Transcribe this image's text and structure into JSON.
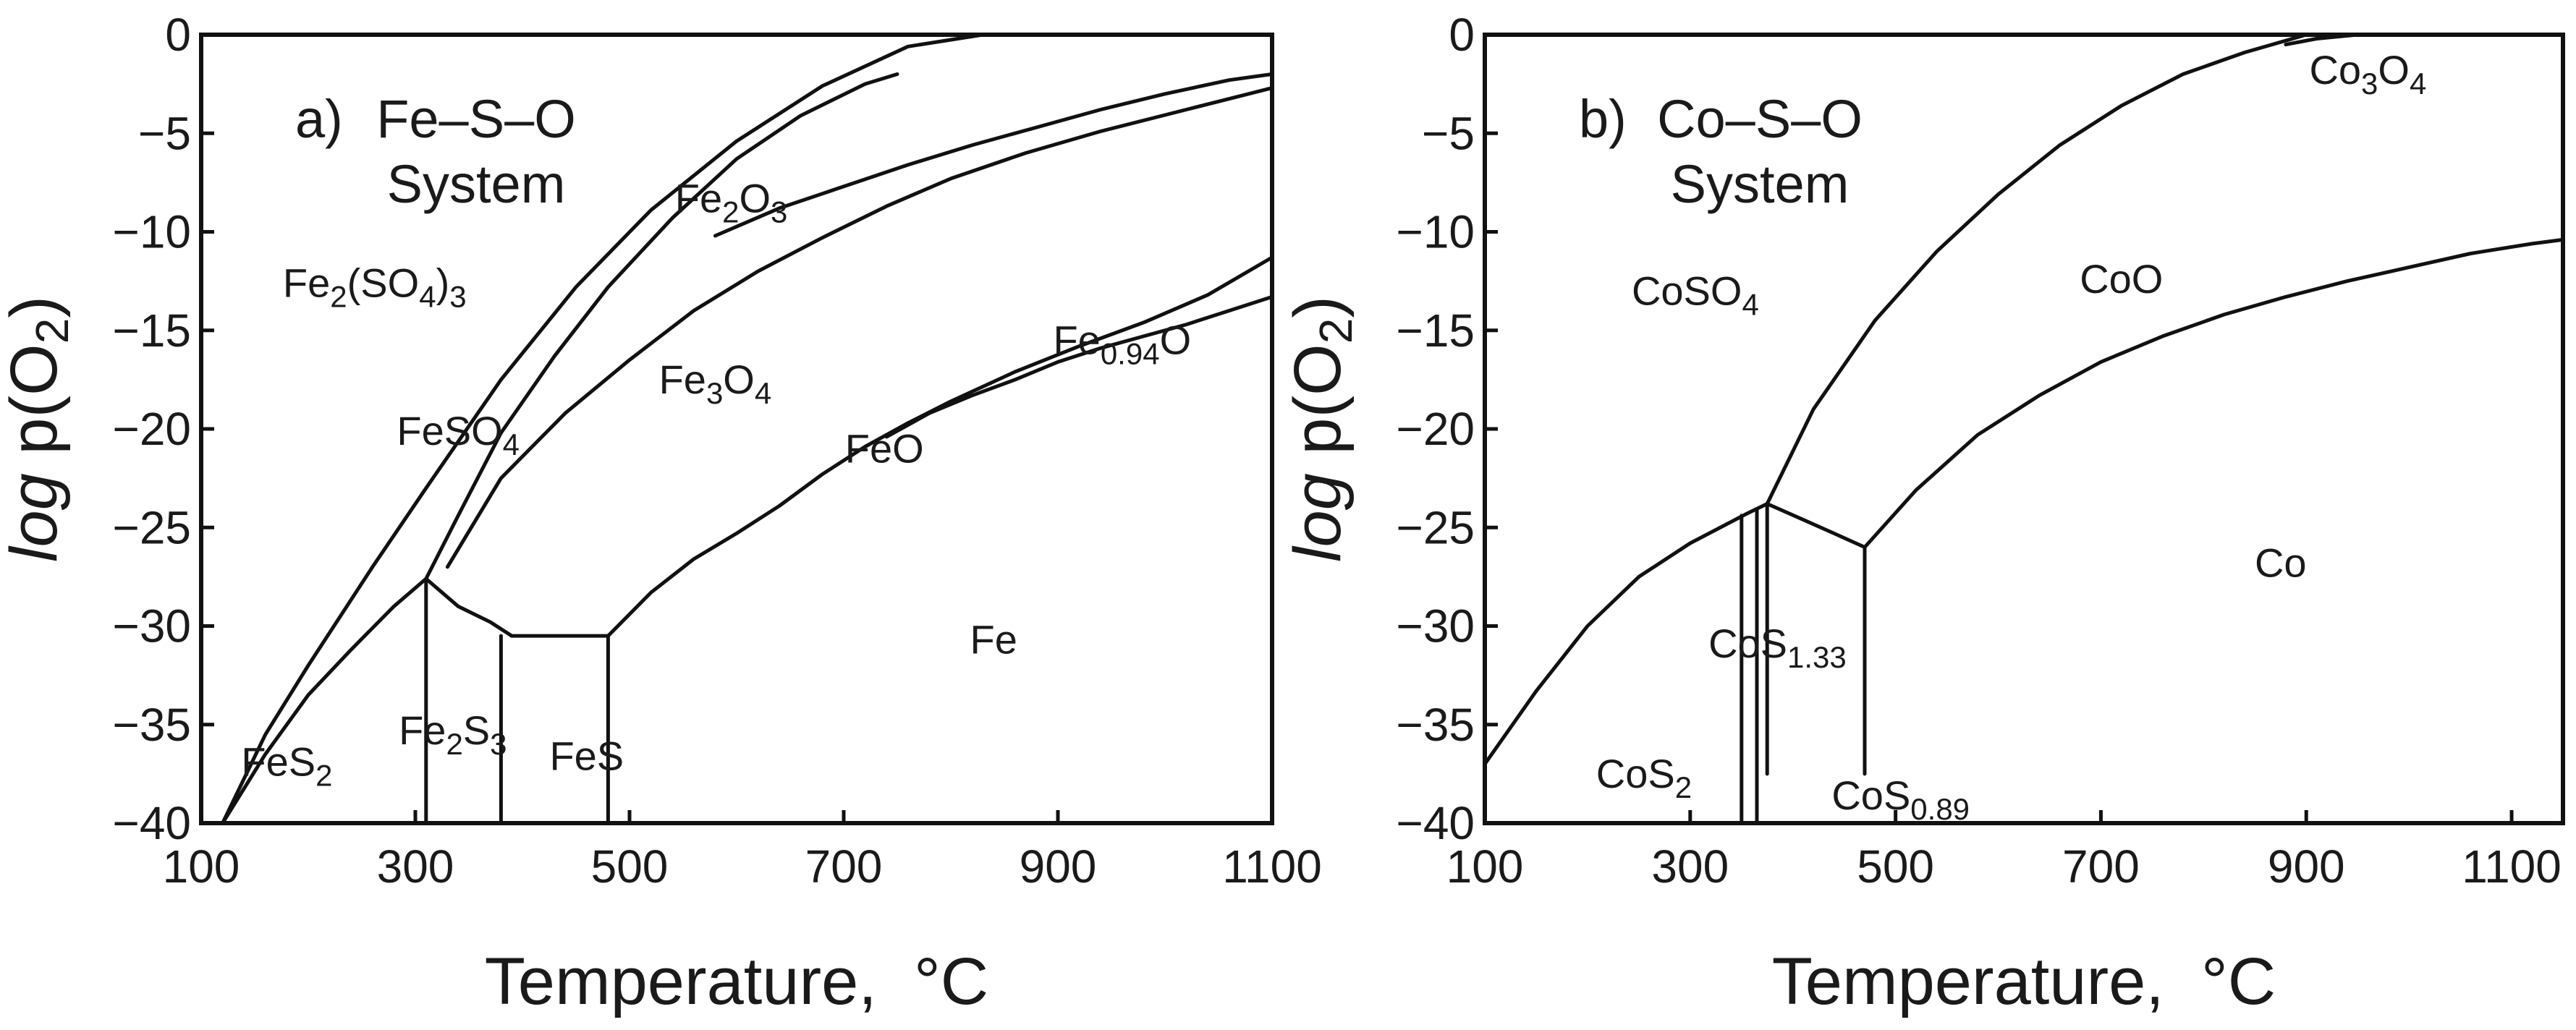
{
  "chart_data": [
    {
      "type": "line",
      "panel_label": "a)",
      "title": "Fe–S–O",
      "subtitle": "System",
      "xlabel": "Temperature,  °C",
      "ylabel_italic": "log",
      "ylabel_rest": " p(O",
      "ylabel_sub": "2",
      "ylabel_close": ")",
      "xlim": [
        100,
        1100
      ],
      "ylim": [
        -40,
        0
      ],
      "xticks": [
        100,
        300,
        500,
        700,
        900,
        1100
      ],
      "yticks": [
        0,
        -5,
        -10,
        -15,
        -20,
        -25,
        -30,
        -35,
        -40
      ],
      "ytick_labels": [
        "0",
        "−5",
        "−10",
        "−15",
        "−20",
        "−25",
        "−30",
        "−35",
        "−40"
      ],
      "series": [
        {
          "name": "FeS2 / Fe2(SO4)3",
          "x": [
            120,
            160,
            200,
            240,
            280,
            310
          ],
          "y": [
            -40,
            -36.5,
            -33.5,
            -31.2,
            -29.0,
            -27.6
          ]
        },
        {
          "name": "Fe2(SO4)3 / sulfides",
          "x": [
            120,
            160,
            200,
            260,
            310,
            380,
            450,
            520,
            600,
            680,
            760,
            830
          ],
          "y": [
            -40,
            -35.5,
            -32.0,
            -27.0,
            -23.0,
            -17.5,
            -12.8,
            -8.9,
            -5.4,
            -2.6,
            -0.6,
            0
          ]
        },
        {
          "name": "FeSO4 / Fe2(SO4)3",
          "x": [
            310,
            340,
            380,
            430,
            480,
            540,
            600,
            660,
            720,
            750
          ],
          "y": [
            -27.6,
            -24.4,
            -20.2,
            -16.3,
            -12.8,
            -9.3,
            -6.3,
            -4.1,
            -2.5,
            -2.0
          ]
        },
        {
          "name": "Fe2O3 / FeSO4",
          "x": [
            330,
            380,
            440,
            500,
            560,
            620,
            680,
            740,
            800,
            870,
            940,
            1020,
            1100
          ],
          "y": [
            -27.0,
            -22.5,
            -19.2,
            -16.5,
            -14.0,
            -12.0,
            -10.3,
            -8.7,
            -7.3,
            -6.0,
            -4.9,
            -3.8,
            -2.7
          ]
        },
        {
          "name": "Fe3O4 / Fe2O3",
          "x": [
            580,
            640,
            700,
            760,
            820,
            880,
            940,
            1000,
            1060,
            1100
          ],
          "y": [
            -10.2,
            -8.8,
            -7.7,
            -6.6,
            -5.6,
            -4.7,
            -3.8,
            -3.0,
            -2.3,
            -2.0
          ]
        },
        {
          "name": "FeS / sulfate boundary",
          "x": [
            310,
            340,
            370,
            390
          ],
          "y": [
            -27.6,
            -29.0,
            -29.8,
            -30.5
          ]
        },
        {
          "name": "FeS-Fe3O4 plateau",
          "x": [
            390,
            480
          ],
          "y": [
            -30.5,
            -30.5
          ]
        },
        {
          "name": "Fe / Fe3O4 + FeO",
          "x": [
            480,
            520,
            560,
            600,
            640,
            680,
            720,
            760,
            800,
            860,
            920,
            980,
            1040,
            1100
          ],
          "y": [
            -30.5,
            -28.3,
            -26.6,
            -25.3,
            -23.9,
            -22.3,
            -20.9,
            -19.7,
            -18.6,
            -17.1,
            -15.8,
            -14.6,
            -13.2,
            -11.3
          ]
        },
        {
          "name": "FeO / Fe3O4",
          "x": [
            740,
            780,
            820,
            860,
            900,
            940,
            980,
            1020,
            1060,
            1100
          ],
          "y": [
            -20.4,
            -19.2,
            -18.3,
            -17.5,
            -16.6,
            -15.9,
            -15.3,
            -14.7,
            -14.0,
            -13.3
          ]
        },
        {
          "name": "Fe2S3 vertical",
          "x": [
            310,
            310
          ],
          "y": [
            -27.6,
            -40
          ]
        },
        {
          "name": "FeS vertical",
          "x": [
            380,
            380
          ],
          "y": [
            -30.5,
            -40
          ]
        },
        {
          "name": "FeS/Fe vertical",
          "x": [
            480,
            480
          ],
          "y": [
            -30.5,
            -40
          ]
        }
      ],
      "region_labels": [
        {
          "text": "Fe2(SO4)3",
          "parts": [
            [
              "Fe",
              ""
            ],
            [
              "2",
              "sub"
            ],
            [
              "(SO",
              ""
            ],
            [
              "4",
              "sub"
            ],
            [
              ")",
              ""
            ],
            [
              "3",
              "sub"
            ]
          ],
          "x": 262,
          "y": -13.3
        },
        {
          "text": "Fe2O3",
          "parts": [
            [
              "Fe",
              ""
            ],
            [
              "2",
              "sub"
            ],
            [
              "O",
              ""
            ],
            [
              "3",
              "sub"
            ]
          ],
          "x": 595,
          "y": -9.0
        },
        {
          "text": "Fe3O4",
          "parts": [
            [
              "Fe",
              ""
            ],
            [
              "3",
              "sub"
            ],
            [
              "O",
              ""
            ],
            [
              "4",
              "sub"
            ]
          ],
          "x": 580,
          "y": -18.2
        },
        {
          "text": "FeSO4",
          "parts": [
            [
              "FeSO",
              ""
            ],
            [
              "4",
              "sub"
            ]
          ],
          "x": 340,
          "y": -20.8
        },
        {
          "text": "FeO",
          "parts": [
            [
              "FeO",
              ""
            ]
          ],
          "x": 738,
          "y": -21.7
        },
        {
          "text": "Fe0.94O",
          "parts": [
            [
              "Fe",
              ""
            ],
            [
              "0.94",
              "sub"
            ],
            [
              "O",
              ""
            ]
          ],
          "x": 960,
          "y": -16.2
        },
        {
          "text": "Fe",
          "parts": [
            [
              "Fe",
              ""
            ]
          ],
          "x": 840,
          "y": -31.4
        },
        {
          "text": "FeS2",
          "parts": [
            [
              "FeS",
              ""
            ],
            [
              "2",
              "sub"
            ]
          ],
          "x": 180,
          "y": -37.6
        },
        {
          "text": "Fe2S3",
          "parts": [
            [
              "Fe",
              ""
            ],
            [
              "2",
              "sub"
            ],
            [
              "S",
              ""
            ],
            [
              "3",
              "sub"
            ]
          ],
          "x": 335,
          "y": -36.0
        },
        {
          "text": "FeS",
          "parts": [
            [
              "FeS",
              ""
            ]
          ],
          "x": 460,
          "y": -37.3
        }
      ]
    },
    {
      "type": "line",
      "panel_label": "b)",
      "title": "Co–S–O",
      "subtitle": "System",
      "xlabel": "Temperature,  °C",
      "ylabel_italic": "log",
      "ylabel_rest": " p(O",
      "ylabel_sub": "2",
      "ylabel_close": ")",
      "xlim": [
        100,
        1150
      ],
      "ylim": [
        -40,
        0
      ],
      "xticks": [
        100,
        300,
        500,
        700,
        900,
        1100
      ],
      "yticks": [
        0,
        -5,
        -10,
        -15,
        -20,
        -25,
        -30,
        -35,
        -40
      ],
      "ytick_labels": [
        "0",
        "−5",
        "−10",
        "−15",
        "−20",
        "−25",
        "−30",
        "−35",
        "−40"
      ],
      "series": [
        {
          "name": "CoS2 / CoSO4",
          "x": [
            100,
            150,
            200,
            250,
            300,
            355
          ],
          "y": [
            -37.0,
            -33.3,
            -30.0,
            -27.5,
            -25.8,
            -24.3
          ]
        },
        {
          "name": "CoSO4 / CoS1.33",
          "x": [
            355,
            375
          ],
          "y": [
            -24.3,
            -23.8
          ]
        },
        {
          "name": "Co3O4 upper",
          "x": [
            375,
            420,
            480,
            540,
            600,
            660,
            720,
            780,
            840,
            900,
            950
          ],
          "y": [
            -23.8,
            -19.0,
            -14.5,
            -11.0,
            -8.1,
            -5.6,
            -3.6,
            -2.0,
            -0.9,
            0,
            0
          ]
        },
        {
          "name": "Co3O4 lower",
          "x": [
            880,
            910,
            950
          ],
          "y": [
            -0.5,
            -0.2,
            0
          ]
        },
        {
          "name": "CoS0.89 / oxide boundary",
          "x": [
            375,
            410,
            440,
            470
          ],
          "y": [
            -23.8,
            -24.6,
            -25.3,
            -26.0
          ]
        },
        {
          "name": "Co / CoO",
          "x": [
            470,
            520,
            580,
            640,
            700,
            760,
            820,
            880,
            940,
            1000,
            1060,
            1120,
            1150
          ],
          "y": [
            -26.0,
            -23.1,
            -20.3,
            -18.3,
            -16.6,
            -15.3,
            -14.2,
            -13.3,
            -12.5,
            -11.8,
            -11.1,
            -10.6,
            -10.4
          ]
        },
        {
          "name": "CoS2 vertical",
          "x": [
            350,
            350
          ],
          "y": [
            -24.4,
            -40
          ]
        },
        {
          "name": "CoS1.33 vertical left",
          "x": [
            365,
            365
          ],
          "y": [
            -24.1,
            -40
          ]
        },
        {
          "name": "CoS1.33 vertical right",
          "x": [
            375,
            375
          ],
          "y": [
            -23.8,
            -37.5
          ]
        },
        {
          "name": "CoS0.89 vertical",
          "x": [
            470,
            470
          ],
          "y": [
            -26.0,
            -37.5
          ]
        }
      ],
      "region_labels": [
        {
          "text": "CoSO4",
          "parts": [
            [
              "CoSO",
              ""
            ],
            [
              "4",
              "sub"
            ]
          ],
          "x": 305,
          "y": -13.7
        },
        {
          "text": "CoO",
          "parts": [
            [
              "CoO",
              ""
            ]
          ],
          "x": 720,
          "y": -13.1
        },
        {
          "text": "Co3O4",
          "parts": [
            [
              "Co",
              ""
            ],
            [
              "3",
              "sub"
            ],
            [
              "O",
              ""
            ],
            [
              "4",
              "sub"
            ]
          ],
          "x": 960,
          "y": -2.5
        },
        {
          "text": "Co",
          "parts": [
            [
              "Co",
              ""
            ]
          ],
          "x": 875,
          "y": -27.5
        },
        {
          "text": "CoS1.33",
          "parts": [
            [
              "CoS",
              ""
            ],
            [
              "1.33",
              "sub"
            ]
          ],
          "x": 385,
          "y": -31.6
        },
        {
          "text": "CoS2",
          "parts": [
            [
              "CoS",
              ""
            ],
            [
              "2",
              "sub"
            ]
          ],
          "x": 255,
          "y": -38.2
        },
        {
          "text": "CoS0.89",
          "parts": [
            [
              "CoS",
              ""
            ],
            [
              "0.89",
              "sub"
            ]
          ],
          "x": 505,
          "y": -39.3
        }
      ]
    }
  ]
}
